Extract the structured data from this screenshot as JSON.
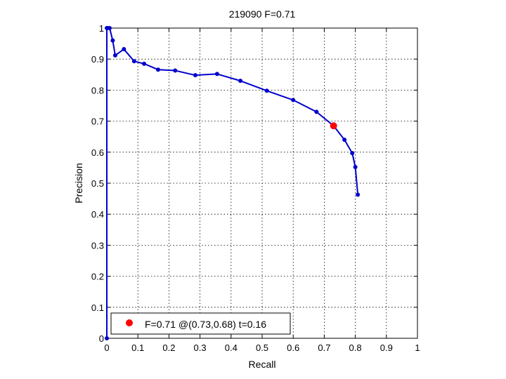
{
  "chart_data": {
    "type": "line",
    "title": "219090 F=0.71",
    "xlabel": "Recall",
    "ylabel": "Precision",
    "xlim": [
      0,
      1
    ],
    "ylim": [
      0,
      1
    ],
    "xticks": [
      0,
      0.1,
      0.2,
      0.3,
      0.4,
      0.5,
      0.6,
      0.7,
      0.8,
      0.9,
      1
    ],
    "yticks": [
      0,
      0.1,
      0.2,
      0.3,
      0.4,
      0.5,
      0.6,
      0.7,
      0.8,
      0.9,
      1
    ],
    "xtick_labels": [
      "0",
      "0.1",
      "0.2",
      "0.3",
      "0.4",
      "0.5",
      "0.6",
      "0.7",
      "0.8",
      "0.9",
      "1"
    ],
    "ytick_labels": [
      "0",
      "0.1",
      "0.2",
      "0.3",
      "0.4",
      "0.5",
      "0.6",
      "0.7",
      "0.8",
      "0.9",
      "1"
    ],
    "grid": true,
    "legend_position": "bottom-left",
    "series": [
      {
        "color": "#0000cc",
        "marker": "dot",
        "x": [
          0.0,
          0.0,
          0.003,
          0.009,
          0.019,
          0.027,
          0.055,
          0.088,
          0.12,
          0.165,
          0.22,
          0.285,
          0.355,
          0.43,
          0.515,
          0.6,
          0.675,
          0.73,
          0.765,
          0.79,
          0.8,
          0.808
        ],
        "y": [
          0.0,
          1.0,
          1.0,
          1.0,
          0.96,
          0.912,
          0.932,
          0.893,
          0.885,
          0.866,
          0.863,
          0.848,
          0.852,
          0.83,
          0.798,
          0.768,
          0.73,
          0.685,
          0.64,
          0.597,
          0.552,
          0.463
        ]
      }
    ],
    "highlight_point": {
      "x": 0.73,
      "y": 0.685,
      "color": "#ff0000"
    },
    "legend": {
      "entries": [
        "F=0.71 @(0.73,0.68) t=0.16"
      ]
    }
  }
}
